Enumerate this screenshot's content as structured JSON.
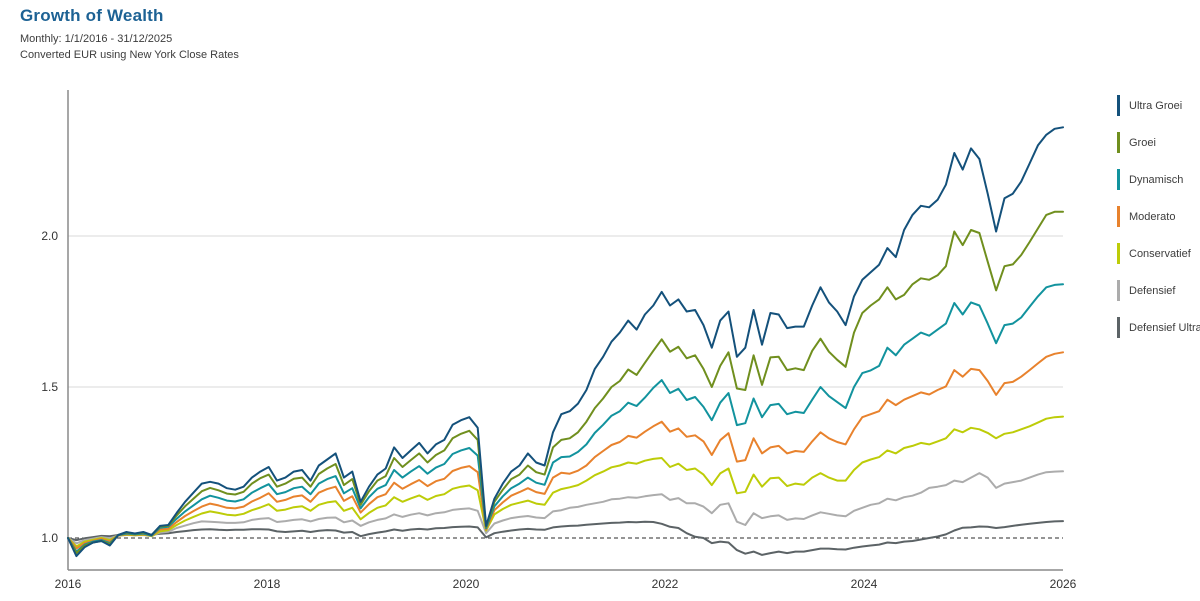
{
  "header": {
    "title": "Growth of Wealth",
    "title_color": "#1D6294",
    "subtitle_period": "Monthly: 1/1/2016 - 31/12/2025",
    "subtitle_note": "Converted EUR using New York Close Rates"
  },
  "chart_data": {
    "type": "line",
    "title": "Growth of Wealth",
    "frequency": "monthly",
    "x_start": "2016-01",
    "x_end": "2025-12",
    "x_ticks": [
      "2016",
      "2018",
      "2020",
      "2022",
      "2024",
      "2026"
    ],
    "y_ticks": [
      "1.0",
      "1.5",
      "2.0"
    ],
    "baseline": 1.0,
    "ylim": [
      0.89,
      2.48
    ],
    "grid": "horizontal",
    "legend_position": "right",
    "axis_color": "#8a8a8a",
    "gridline_color": "#d8d8d8",
    "baseline_color": "#2b2b2b",
    "tick_label_color": "#333333",
    "series": [
      {
        "name": "Ultra Groei",
        "color": "#14517B",
        "values": [
          1.0,
          0.94,
          0.97,
          0.985,
          0.99,
          0.975,
          1.01,
          1.02,
          1.015,
          1.02,
          1.01,
          1.04,
          1.043,
          1.083,
          1.12,
          1.15,
          1.18,
          1.186,
          1.18,
          1.165,
          1.16,
          1.17,
          1.2,
          1.22,
          1.235,
          1.19,
          1.2,
          1.22,
          1.225,
          1.19,
          1.24,
          1.26,
          1.28,
          1.2,
          1.22,
          1.12,
          1.17,
          1.21,
          1.23,
          1.3,
          1.265,
          1.29,
          1.315,
          1.28,
          1.31,
          1.325,
          1.375,
          1.39,
          1.4,
          1.365,
          1.04,
          1.13,
          1.18,
          1.22,
          1.24,
          1.28,
          1.25,
          1.24,
          1.35,
          1.41,
          1.42,
          1.445,
          1.49,
          1.56,
          1.6,
          1.65,
          1.68,
          1.72,
          1.69,
          1.74,
          1.77,
          1.815,
          1.77,
          1.79,
          1.75,
          1.755,
          1.705,
          1.63,
          1.72,
          1.75,
          1.6,
          1.63,
          1.755,
          1.64,
          1.745,
          1.74,
          1.695,
          1.7,
          1.7,
          1.77,
          1.83,
          1.78,
          1.75,
          1.705,
          1.8,
          1.855,
          1.88,
          1.905,
          1.96,
          1.93,
          2.02,
          2.07,
          2.1,
          2.095,
          2.12,
          2.17,
          2.275,
          2.22,
          2.29,
          2.255,
          2.14,
          2.015,
          2.125,
          2.14,
          2.18,
          2.24,
          2.3,
          2.335,
          2.355,
          2.36
        ]
      },
      {
        "name": "Groei",
        "color": "#708F1E",
        "values": [
          1.0,
          0.95,
          0.975,
          0.985,
          0.99,
          0.98,
          1.01,
          1.018,
          1.014,
          1.018,
          1.01,
          1.038,
          1.04,
          1.075,
          1.105,
          1.13,
          1.155,
          1.166,
          1.158,
          1.147,
          1.144,
          1.153,
          1.18,
          1.198,
          1.21,
          1.17,
          1.18,
          1.196,
          1.2,
          1.17,
          1.212,
          1.23,
          1.245,
          1.175,
          1.195,
          1.11,
          1.155,
          1.19,
          1.205,
          1.265,
          1.235,
          1.258,
          1.28,
          1.25,
          1.275,
          1.29,
          1.33,
          1.345,
          1.355,
          1.325,
          1.036,
          1.12,
          1.16,
          1.195,
          1.21,
          1.24,
          1.218,
          1.21,
          1.3,
          1.325,
          1.33,
          1.35,
          1.385,
          1.43,
          1.462,
          1.5,
          1.52,
          1.558,
          1.54,
          1.58,
          1.62,
          1.658,
          1.617,
          1.633,
          1.595,
          1.605,
          1.56,
          1.5,
          1.57,
          1.615,
          1.495,
          1.49,
          1.605,
          1.507,
          1.598,
          1.6,
          1.556,
          1.562,
          1.556,
          1.62,
          1.66,
          1.617,
          1.59,
          1.567,
          1.68,
          1.745,
          1.77,
          1.79,
          1.83,
          1.79,
          1.805,
          1.84,
          1.86,
          1.855,
          1.87,
          1.9,
          2.015,
          1.97,
          2.02,
          2.01,
          1.915,
          1.82,
          1.9,
          1.906,
          1.937,
          1.98,
          2.025,
          2.07,
          2.08,
          2.08
        ]
      },
      {
        "name": "Dynamisch",
        "color": "#12939E",
        "values": [
          1.0,
          0.955,
          0.978,
          0.988,
          0.993,
          0.983,
          1.009,
          1.015,
          1.012,
          1.015,
          1.008,
          1.034,
          1.037,
          1.064,
          1.088,
          1.108,
          1.128,
          1.14,
          1.133,
          1.124,
          1.121,
          1.128,
          1.15,
          1.165,
          1.178,
          1.145,
          1.152,
          1.165,
          1.17,
          1.145,
          1.18,
          1.195,
          1.205,
          1.148,
          1.165,
          1.098,
          1.135,
          1.163,
          1.175,
          1.225,
          1.2,
          1.22,
          1.238,
          1.213,
          1.233,
          1.245,
          1.278,
          1.29,
          1.298,
          1.273,
          1.032,
          1.105,
          1.138,
          1.165,
          1.18,
          1.2,
          1.183,
          1.176,
          1.25,
          1.268,
          1.27,
          1.285,
          1.31,
          1.348,
          1.375,
          1.405,
          1.42,
          1.448,
          1.437,
          1.465,
          1.497,
          1.523,
          1.48,
          1.494,
          1.457,
          1.467,
          1.434,
          1.39,
          1.448,
          1.48,
          1.374,
          1.38,
          1.462,
          1.4,
          1.44,
          1.444,
          1.41,
          1.418,
          1.414,
          1.458,
          1.5,
          1.47,
          1.45,
          1.43,
          1.5,
          1.546,
          1.555,
          1.57,
          1.63,
          1.605,
          1.64,
          1.66,
          1.68,
          1.67,
          1.69,
          1.71,
          1.778,
          1.74,
          1.78,
          1.77,
          1.71,
          1.645,
          1.705,
          1.71,
          1.73,
          1.766,
          1.8,
          1.83,
          1.838,
          1.84
        ]
      },
      {
        "name": "Moderato",
        "color": "#E8822D",
        "values": [
          1.0,
          0.965,
          0.983,
          0.99,
          0.997,
          0.988,
          1.008,
          1.013,
          1.011,
          1.013,
          1.007,
          1.028,
          1.031,
          1.053,
          1.073,
          1.089,
          1.104,
          1.114,
          1.108,
          1.1,
          1.098,
          1.104,
          1.121,
          1.133,
          1.148,
          1.12,
          1.126,
          1.137,
          1.141,
          1.12,
          1.15,
          1.162,
          1.17,
          1.123,
          1.138,
          1.084,
          1.112,
          1.135,
          1.145,
          1.183,
          1.163,
          1.178,
          1.192,
          1.172,
          1.188,
          1.196,
          1.222,
          1.232,
          1.238,
          1.218,
          1.028,
          1.092,
          1.118,
          1.14,
          1.152,
          1.165,
          1.152,
          1.146,
          1.2,
          1.216,
          1.213,
          1.223,
          1.24,
          1.268,
          1.288,
          1.308,
          1.318,
          1.338,
          1.332,
          1.352,
          1.37,
          1.385,
          1.352,
          1.363,
          1.335,
          1.34,
          1.32,
          1.275,
          1.324,
          1.347,
          1.253,
          1.258,
          1.33,
          1.28,
          1.3,
          1.305,
          1.28,
          1.288,
          1.285,
          1.32,
          1.35,
          1.33,
          1.318,
          1.31,
          1.36,
          1.4,
          1.41,
          1.42,
          1.458,
          1.44,
          1.458,
          1.47,
          1.482,
          1.475,
          1.49,
          1.502,
          1.556,
          1.534,
          1.56,
          1.556,
          1.52,
          1.474,
          1.513,
          1.517,
          1.534,
          1.556,
          1.578,
          1.6,
          1.61,
          1.615
        ]
      },
      {
        "name": "Conservatief",
        "color": "#BDCC08",
        "values": [
          1.0,
          0.972,
          0.988,
          0.994,
          1.0,
          0.993,
          1.008,
          1.011,
          1.009,
          1.011,
          1.006,
          1.022,
          1.026,
          1.043,
          1.058,
          1.07,
          1.081,
          1.088,
          1.083,
          1.077,
          1.075,
          1.08,
          1.092,
          1.101,
          1.112,
          1.09,
          1.094,
          1.102,
          1.105,
          1.09,
          1.11,
          1.118,
          1.122,
          1.09,
          1.1,
          1.062,
          1.083,
          1.1,
          1.108,
          1.135,
          1.12,
          1.131,
          1.141,
          1.126,
          1.139,
          1.145,
          1.163,
          1.17,
          1.174,
          1.158,
          1.025,
          1.078,
          1.096,
          1.11,
          1.117,
          1.124,
          1.114,
          1.11,
          1.15,
          1.162,
          1.168,
          1.175,
          1.19,
          1.208,
          1.22,
          1.234,
          1.24,
          1.25,
          1.246,
          1.256,
          1.262,
          1.265,
          1.235,
          1.246,
          1.225,
          1.23,
          1.21,
          1.175,
          1.214,
          1.23,
          1.148,
          1.153,
          1.21,
          1.17,
          1.198,
          1.2,
          1.172,
          1.18,
          1.176,
          1.2,
          1.215,
          1.2,
          1.19,
          1.19,
          1.225,
          1.25,
          1.26,
          1.268,
          1.29,
          1.28,
          1.298,
          1.305,
          1.315,
          1.31,
          1.32,
          1.33,
          1.36,
          1.35,
          1.365,
          1.36,
          1.348,
          1.33,
          1.345,
          1.35,
          1.36,
          1.37,
          1.382,
          1.395,
          1.4,
          1.402
        ]
      },
      {
        "name": "Defensief",
        "color": "#ACACAC",
        "values": [
          1.0,
          0.982,
          0.993,
          0.998,
          1.003,
          0.999,
          1.008,
          1.01,
          1.009,
          1.01,
          1.007,
          1.018,
          1.021,
          1.033,
          1.041,
          1.049,
          1.055,
          1.054,
          1.052,
          1.05,
          1.05,
          1.052,
          1.06,
          1.064,
          1.066,
          1.053,
          1.056,
          1.06,
          1.062,
          1.055,
          1.063,
          1.067,
          1.068,
          1.052,
          1.058,
          1.04,
          1.052,
          1.06,
          1.065,
          1.078,
          1.07,
          1.077,
          1.082,
          1.075,
          1.082,
          1.085,
          1.093,
          1.096,
          1.098,
          1.09,
          1.016,
          1.048,
          1.058,
          1.066,
          1.07,
          1.073,
          1.068,
          1.066,
          1.088,
          1.092,
          1.1,
          1.103,
          1.11,
          1.115,
          1.12,
          1.128,
          1.13,
          1.135,
          1.133,
          1.138,
          1.142,
          1.145,
          1.126,
          1.132,
          1.115,
          1.115,
          1.104,
          1.082,
          1.11,
          1.115,
          1.054,
          1.043,
          1.082,
          1.066,
          1.072,
          1.075,
          1.06,
          1.065,
          1.063,
          1.075,
          1.085,
          1.08,
          1.075,
          1.072,
          1.09,
          1.1,
          1.11,
          1.115,
          1.13,
          1.125,
          1.135,
          1.14,
          1.15,
          1.166,
          1.17,
          1.175,
          1.19,
          1.185,
          1.2,
          1.215,
          1.2,
          1.166,
          1.18,
          1.185,
          1.19,
          1.2,
          1.21,
          1.218,
          1.22,
          1.221
        ]
      },
      {
        "name": "Defensief Ultra",
        "color": "#5C6366",
        "values": [
          1.0,
          0.993,
          0.999,
          1.003,
          1.007,
          1.006,
          1.01,
          1.011,
          1.012,
          1.012,
          1.011,
          1.014,
          1.016,
          1.02,
          1.023,
          1.026,
          1.028,
          1.029,
          1.027,
          1.026,
          1.027,
          1.027,
          1.029,
          1.029,
          1.028,
          1.022,
          1.02,
          1.022,
          1.024,
          1.02,
          1.024,
          1.026,
          1.025,
          1.018,
          1.02,
          1.006,
          1.013,
          1.018,
          1.022,
          1.028,
          1.024,
          1.028,
          1.03,
          1.028,
          1.032,
          1.033,
          1.036,
          1.037,
          1.038,
          1.035,
          1.002,
          1.016,
          1.021,
          1.025,
          1.028,
          1.03,
          1.028,
          1.027,
          1.035,
          1.038,
          1.04,
          1.041,
          1.044,
          1.046,
          1.048,
          1.05,
          1.051,
          1.053,
          1.052,
          1.054,
          1.053,
          1.047,
          1.037,
          1.033,
          1.016,
          1.004,
          1.0,
          0.983,
          0.988,
          0.985,
          0.96,
          0.948,
          0.955,
          0.944,
          0.95,
          0.955,
          0.95,
          0.955,
          0.955,
          0.96,
          0.965,
          0.965,
          0.963,
          0.962,
          0.968,
          0.972,
          0.975,
          0.978,
          0.985,
          0.983,
          0.988,
          0.99,
          0.995,
          1.0,
          1.005,
          1.012,
          1.025,
          1.034,
          1.035,
          1.038,
          1.037,
          1.033,
          1.036,
          1.04,
          1.044,
          1.047,
          1.05,
          1.053,
          1.055,
          1.056
        ]
      }
    ]
  }
}
